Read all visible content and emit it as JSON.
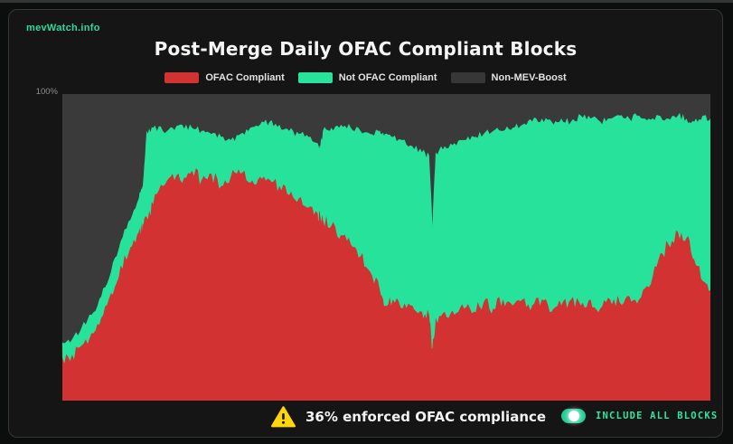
{
  "brand": {
    "name": "mevWatch.info",
    "color": "#2fd99b"
  },
  "header": {
    "title": "Post-Merge Daily OFAC Compliant Blocks"
  },
  "legend": {
    "items": [
      {
        "label": "OFAC Compliant",
        "color": "#d23232"
      },
      {
        "label": "Not OFAC Compliant",
        "color": "#26e29b"
      },
      {
        "label": "Non-MEV-Boost",
        "color": "#373737"
      }
    ]
  },
  "y_axis": {
    "top_tick": "100%"
  },
  "plot": {
    "bg_color": "#3a3a3a"
  },
  "footer": {
    "warning_color": "#ffd60b",
    "stat_text": "36% enforced OFAC compliance",
    "toggle": {
      "state": "on",
      "color": "#1dcd8f",
      "label_color": "#2ee6a0",
      "label": "INCLUDE ALL BLOCKS"
    }
  },
  "chart_data": {
    "type": "area",
    "stacked": true,
    "title": "Post-Merge Daily OFAC Compliant Blocks",
    "ylim": [
      0,
      100
    ],
    "y_tick_labels": [
      "100%"
    ],
    "x_axis": {
      "label": "",
      "tick_labels": [],
      "x_unit": "percent-of-chart-width"
    },
    "grid": false,
    "legend_position": "top",
    "series": [
      {
        "name": "OFAC Compliant",
        "color": "#d23232",
        "role": "bottom-stack"
      },
      {
        "name": "Not OFAC Compliant",
        "color": "#26e29b",
        "role": "middle-stack"
      },
      {
        "name": "Non-MEV-Boost",
        "color": "#3a3a3a",
        "role": "remainder-to-100"
      }
    ],
    "x_pct": [
      0,
      1.5,
      3,
      4.5,
      6,
      7.5,
      9,
      10.5,
      11.8,
      12.4,
      13,
      14,
      15.5,
      17,
      18.5,
      20,
      21.5,
      23,
      24.5,
      26,
      27.5,
      29,
      30.5,
      32,
      33.5,
      35,
      36.5,
      38,
      39.4,
      39.8,
      40.2,
      41.5,
      43,
      44.5,
      46,
      47.5,
      49,
      49.8,
      51,
      52.5,
      54,
      55.5,
      56.6,
      57.1,
      57.6,
      59,
      60.5,
      62,
      63.5,
      65,
      66.5,
      68,
      69.5,
      71,
      72.5,
      74,
      75.5,
      77,
      78.5,
      80,
      81.5,
      83,
      84.5,
      86,
      87.5,
      89,
      90.5,
      92,
      93.5,
      95,
      96.3,
      97.5,
      98.8,
      100
    ],
    "ofac_compliant_pct": [
      14,
      15,
      18,
      22,
      27,
      35,
      44,
      50,
      55,
      58,
      60,
      64,
      70,
      74,
      71,
      75,
      72,
      74,
      70,
      73,
      74,
      71,
      73,
      72,
      70,
      67,
      66,
      63,
      61,
      60,
      59,
      57,
      54,
      51,
      47,
      42,
      36,
      31,
      33,
      30,
      31,
      29,
      28,
      17,
      27,
      29,
      28,
      30,
      29,
      32,
      30,
      33,
      31,
      33,
      31,
      33,
      29,
      31,
      33,
      31,
      33,
      30,
      33,
      32,
      34,
      33,
      37,
      46,
      51,
      55,
      53,
      46,
      39,
      36
    ],
    "not_ofac_compliant_pct": [
      5,
      5,
      6,
      6,
      7,
      7,
      8,
      9,
      11,
      12,
      28,
      25,
      18,
      15,
      19,
      14,
      16,
      13,
      16,
      12,
      13,
      18,
      17,
      19,
      20,
      21,
      21,
      23,
      23,
      23,
      29,
      32,
      36,
      38,
      41,
      45,
      52,
      56,
      53,
      55,
      52,
      52,
      52,
      40,
      54,
      54,
      56,
      55,
      57,
      55,
      58,
      55,
      58,
      57,
      60,
      59,
      62,
      61,
      58,
      62,
      59,
      61,
      59,
      61,
      58,
      60,
      55,
      47,
      41,
      38,
      39,
      45,
      54,
      56
    ],
    "render": {
      "spike_amplitude_pct": {
        "ofac": 2.2,
        "total": 1.2
      },
      "subdivisions": 5
    }
  }
}
